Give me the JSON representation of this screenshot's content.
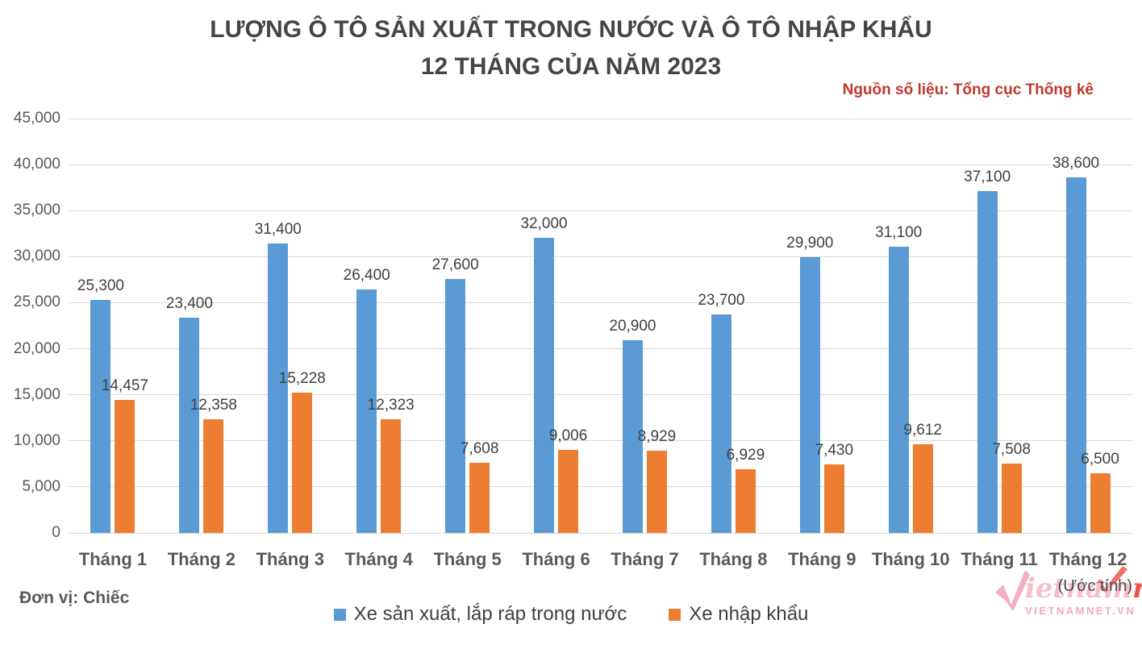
{
  "header": {
    "title_line1": "LƯỢNG Ô TÔ SẢN XUẤT TRONG NƯỚC VÀ Ô TÔ NHẬP KHẨU",
    "title_line2": "12 THÁNG CỦA NĂM 2023",
    "source": "Nguồn số liệu: Tổng cục Thống kê"
  },
  "chart_data": {
    "type": "bar",
    "categories": [
      "Tháng 1",
      "Tháng 2",
      "Tháng 3",
      "Tháng 4",
      "Tháng 5",
      "Tháng 6",
      "Tháng 7",
      "Tháng 8",
      "Tháng 9",
      "Tháng 10",
      "Tháng 11",
      "Tháng 12"
    ],
    "series": [
      {
        "name": "Xe sản xuất, lắp ráp trong nước",
        "color": "#5B9BD5",
        "values": [
          25300,
          23400,
          31400,
          26400,
          27600,
          32000,
          20900,
          23700,
          29900,
          31100,
          37100,
          38600
        ]
      },
      {
        "name": "Xe nhập khẩu",
        "color": "#ED7D31",
        "values": [
          14457,
          12358,
          15228,
          12323,
          7608,
          9006,
          8929,
          6929,
          7430,
          9612,
          7508,
          6500
        ]
      }
    ],
    "title": "LƯỢNG Ô TÔ SẢN XUẤT TRONG NƯỚC VÀ Ô TÔ NHẬP KHẨU 12 THÁNG CỦA NĂM 2023",
    "xlabel": "",
    "ylabel": "",
    "ylim": [
      0,
      45000
    ],
    "ytick_step": 5000,
    "grid": true,
    "legend_position": "bottom",
    "gridline_color": "#d9d9d9",
    "last_category_note": "(Ước tính)"
  },
  "footer": {
    "unit_label": "Đơn vị: Chiếc",
    "note": "(Ước tính)",
    "logo": {
      "script_part1": "ietnam",
      "script_part2": "net",
      "subtext": "VIETNAMNET.VN"
    }
  }
}
